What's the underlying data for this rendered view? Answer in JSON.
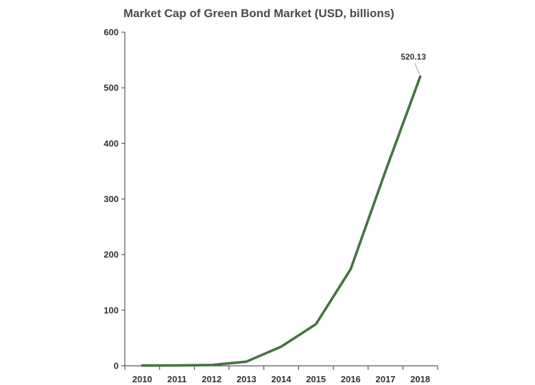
{
  "chart_data": {
    "type": "line",
    "title": "Market Cap of Green Bond Market (USD, billions)",
    "xlabel": "",
    "ylabel": "",
    "categories": [
      "2010",
      "2011",
      "2012",
      "2013",
      "2014",
      "2015",
      "2016",
      "2017",
      "2018"
    ],
    "series": [
      {
        "values": [
          0.5,
          0.8,
          1.5,
          7.5,
          34.5,
          75,
          174,
          350,
          520.13
        ],
        "color": "#3a6b35"
      }
    ],
    "ylim": [
      0,
      600
    ],
    "yticks": [
      0,
      100,
      200,
      300,
      400,
      500,
      600
    ],
    "grid": false,
    "legend": "none",
    "annotation": {
      "text": "520.13",
      "category": "2018",
      "value": 520.13
    }
  }
}
